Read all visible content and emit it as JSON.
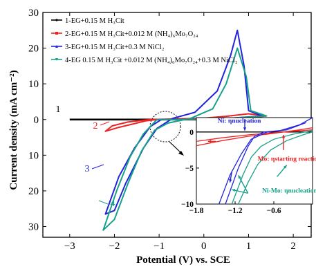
{
  "chart_data": {
    "type": "line",
    "xlabel": "Potential (V) vs. SCE",
    "ylabel": "Current density (mA cm⁻²)",
    "xlim": [
      -3.6,
      2.4
    ],
    "ylim": [
      -33,
      30
    ],
    "x_ticks": [
      -3,
      -2,
      -1,
      0,
      1,
      2
    ],
    "y_ticks": [
      30,
      20,
      10,
      0,
      10,
      20,
      30
    ],
    "grid": false,
    "legend_position": "top-left",
    "series": [
      {
        "name": "1-EG+0.15 M H₃Cit",
        "label": "1",
        "color": "#000000",
        "points": [
          [
            -3.0,
            0
          ],
          [
            2.0,
            0
          ]
        ]
      },
      {
        "name": "2-EG+0.15 M H₃Cit+0.012 M (NH₄)₆Mo₇O₂₄",
        "label": "2",
        "color": "#ee2222",
        "points": [
          [
            -1.05,
            0
          ],
          [
            -1.3,
            -0.4
          ],
          [
            -1.6,
            -1.3
          ],
          [
            -1.9,
            -2.2
          ],
          [
            -2.2,
            -3.3
          ],
          [
            -2.05,
            -1.8
          ],
          [
            -1.7,
            -0.7
          ],
          [
            -1.2,
            0
          ],
          [
            -0.5,
            0.2
          ],
          [
            0.0,
            0.4
          ],
          [
            0.5,
            0.9
          ],
          [
            1.0,
            1.6
          ],
          [
            1.4,
            1.0
          ],
          [
            0.7,
            0.1
          ],
          [
            0.0,
            0
          ],
          [
            -1.05,
            0
          ]
        ]
      },
      {
        "name": "3-EG+0.15 M H₃Cit+0.3 M NiCl₂",
        "label": "3",
        "color": "#2222dd",
        "points": [
          [
            -0.95,
            0
          ],
          [
            -1.2,
            -2.0
          ],
          [
            -1.55,
            -8.0
          ],
          [
            -1.9,
            -16.0
          ],
          [
            -2.2,
            -26.5
          ],
          [
            -2.0,
            -25.5
          ],
          [
            -1.75,
            -18.0
          ],
          [
            -1.35,
            -8.0
          ],
          [
            -1.05,
            -2.5
          ],
          [
            -0.7,
            0.3
          ],
          [
            -0.2,
            2.0
          ],
          [
            0.3,
            8.0
          ],
          [
            0.6,
            18.0
          ],
          [
            0.75,
            25.0
          ],
          [
            0.9,
            15.0
          ],
          [
            1.0,
            2.5
          ],
          [
            1.3,
            1.0
          ],
          [
            0.5,
            0.3
          ],
          [
            -0.5,
            0
          ],
          [
            -0.95,
            0
          ]
        ]
      },
      {
        "name": "4-EG  0.15 M H₃Cit +0.012 M (NH₄)₆Mo₇O₂₄+0.3 M NiCl₂",
        "label": "4",
        "color": "#17a08a",
        "points": [
          [
            -1.05,
            0
          ],
          [
            -1.35,
            -4.0
          ],
          [
            -1.65,
            -10.5
          ],
          [
            -1.95,
            -20.0
          ],
          [
            -2.25,
            -31.0
          ],
          [
            -2.0,
            -28.0
          ],
          [
            -1.7,
            -18.0
          ],
          [
            -1.4,
            -9.0
          ],
          [
            -1.1,
            -3.0
          ],
          [
            -0.8,
            -1.0
          ],
          [
            -0.3,
            0.3
          ],
          [
            0.2,
            3.0
          ],
          [
            0.5,
            10.0
          ],
          [
            0.75,
            20.0
          ],
          [
            0.95,
            12.0
          ],
          [
            1.05,
            2.5
          ],
          [
            1.4,
            1.0
          ],
          [
            0.5,
            0.3
          ],
          [
            -0.5,
            0
          ],
          [
            -1.05,
            0
          ]
        ]
      }
    ],
    "inset": {
      "xlim": [
        -1.8,
        0.0
      ],
      "ylim": [
        -10,
        2
      ],
      "x_ticks": [
        -1.8,
        -1.2,
        -0.6
      ],
      "y_ticks": [
        0,
        -5,
        -10
      ],
      "annotations": [
        {
          "text": "Ni: ηnucleation",
          "color": "#2222dd"
        },
        {
          "text": "Mo: ηstarting reaction",
          "color": "#ee2222"
        },
        {
          "text": "Ni-Mo: ηnucleation",
          "color": "#17a08a"
        }
      ]
    }
  }
}
